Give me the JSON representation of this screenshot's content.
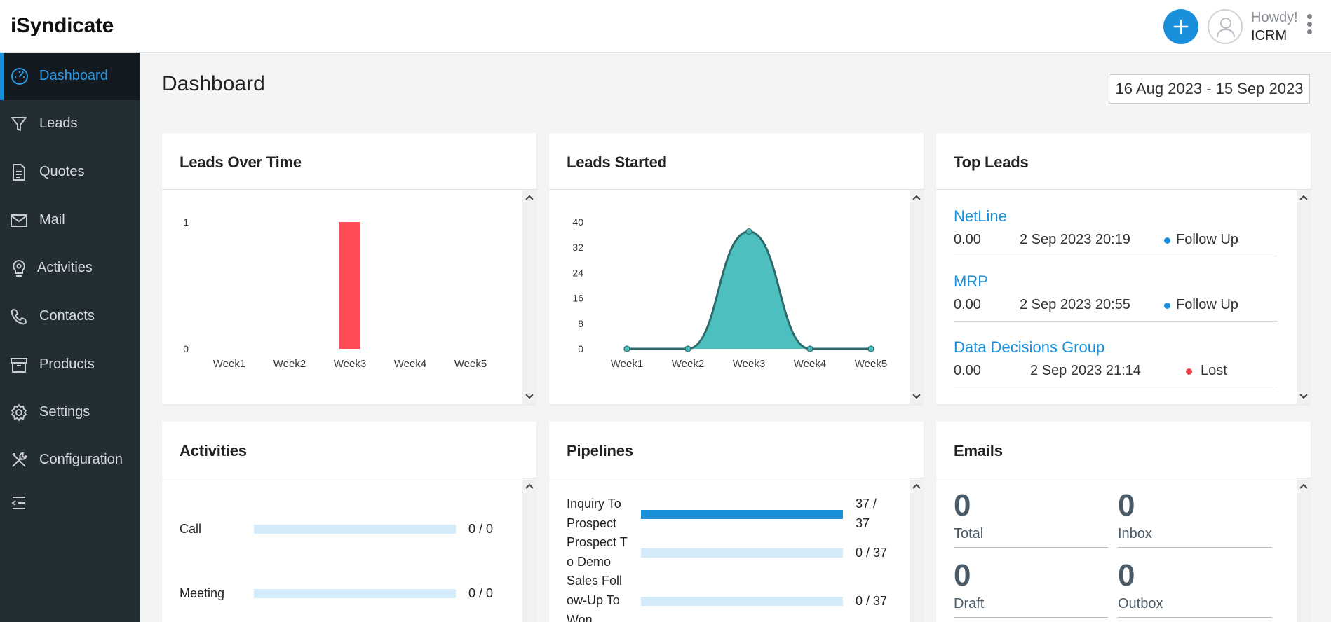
{
  "app": {
    "brand": "iSyndicate"
  },
  "header": {
    "greeting": "Howdy!",
    "user": "ICRM"
  },
  "sidebar": {
    "items": [
      {
        "label": "Dashboard",
        "icon": "dashboard-icon",
        "active": true
      },
      {
        "label": "Leads",
        "icon": "filter-icon"
      },
      {
        "label": "Quotes",
        "icon": "document-icon"
      },
      {
        "label": "Mail",
        "icon": "mail-icon"
      },
      {
        "label": "Activities",
        "icon": "lightbulb-icon"
      },
      {
        "label": "Contacts",
        "icon": "phone-icon"
      },
      {
        "label": "Products",
        "icon": "archive-icon"
      },
      {
        "label": "Settings",
        "icon": "gear-icon"
      },
      {
        "label": "Configuration",
        "icon": "tools-icon"
      }
    ]
  },
  "page": {
    "title": "Dashboard",
    "date_range": "16 Aug 2023 - 15 Sep 2023"
  },
  "colors": {
    "accent": "#1a8fdc",
    "bar_red": "#ff4b55",
    "area_teal": "#4dbfbf",
    "area_stroke": "#2e6a6a",
    "lost_red": "#f2424c"
  },
  "cards": {
    "leads_over_time": {
      "title": "Leads Over Time"
    },
    "leads_started": {
      "title": "Leads Started"
    },
    "top_leads": {
      "title": "Top Leads",
      "items": [
        {
          "name": "NetLine",
          "value": "0.00",
          "date": "2 Sep 2023 20:19",
          "status": "Follow Up",
          "status_color": "#1a8fdc"
        },
        {
          "name": "MRP",
          "value": "0.00",
          "date": "2 Sep 2023 20:55",
          "status": "Follow Up",
          "status_color": "#1a8fdc"
        },
        {
          "name": "Data Decisions Group",
          "value": "0.00",
          "date": "2 Sep 2023 21:14",
          "status": "Lost",
          "status_color": "#f2424c"
        }
      ]
    },
    "activities": {
      "title": "Activities",
      "rows": [
        {
          "label": "Call",
          "count": "0 / 0",
          "fraction": 0
        },
        {
          "label": "Meeting",
          "count": "0 / 0",
          "fraction": 0
        }
      ]
    },
    "pipelines": {
      "title": "Pipelines",
      "rows": [
        {
          "label": "Inquiry To Prospect",
          "count": "37 / 37",
          "fraction": 1
        },
        {
          "label": "Prospect To Demo",
          "count": "0 / 37",
          "fraction": 0
        },
        {
          "label": "Sales Follow-Up To Won",
          "count": "0 / 37",
          "fraction": 0
        }
      ]
    },
    "emails": {
      "title": "Emails",
      "stats": [
        {
          "label": "Total",
          "value": "0"
        },
        {
          "label": "Inbox",
          "value": "0"
        },
        {
          "label": "Draft",
          "value": "0"
        },
        {
          "label": "Outbox",
          "value": "0"
        }
      ]
    }
  },
  "chart_data": [
    {
      "type": "bar",
      "title": "Leads Over Time",
      "categories": [
        "Week1",
        "Week2",
        "Week3",
        "Week4",
        "Week5"
      ],
      "values": [
        0,
        0,
        1,
        0,
        0
      ],
      "yticks": [
        "0",
        "1"
      ],
      "ylim": [
        0,
        1
      ],
      "color": "#ff4b55"
    },
    {
      "type": "area",
      "title": "Leads Started",
      "categories": [
        "Week1",
        "Week2",
        "Week3",
        "Week4",
        "Week5"
      ],
      "values": [
        0,
        0,
        37,
        0,
        0
      ],
      "yticks": [
        "0",
        "8",
        "16",
        "24",
        "32",
        "40"
      ],
      "ylim": [
        0,
        40
      ],
      "color": "#4dbfbf"
    }
  ]
}
